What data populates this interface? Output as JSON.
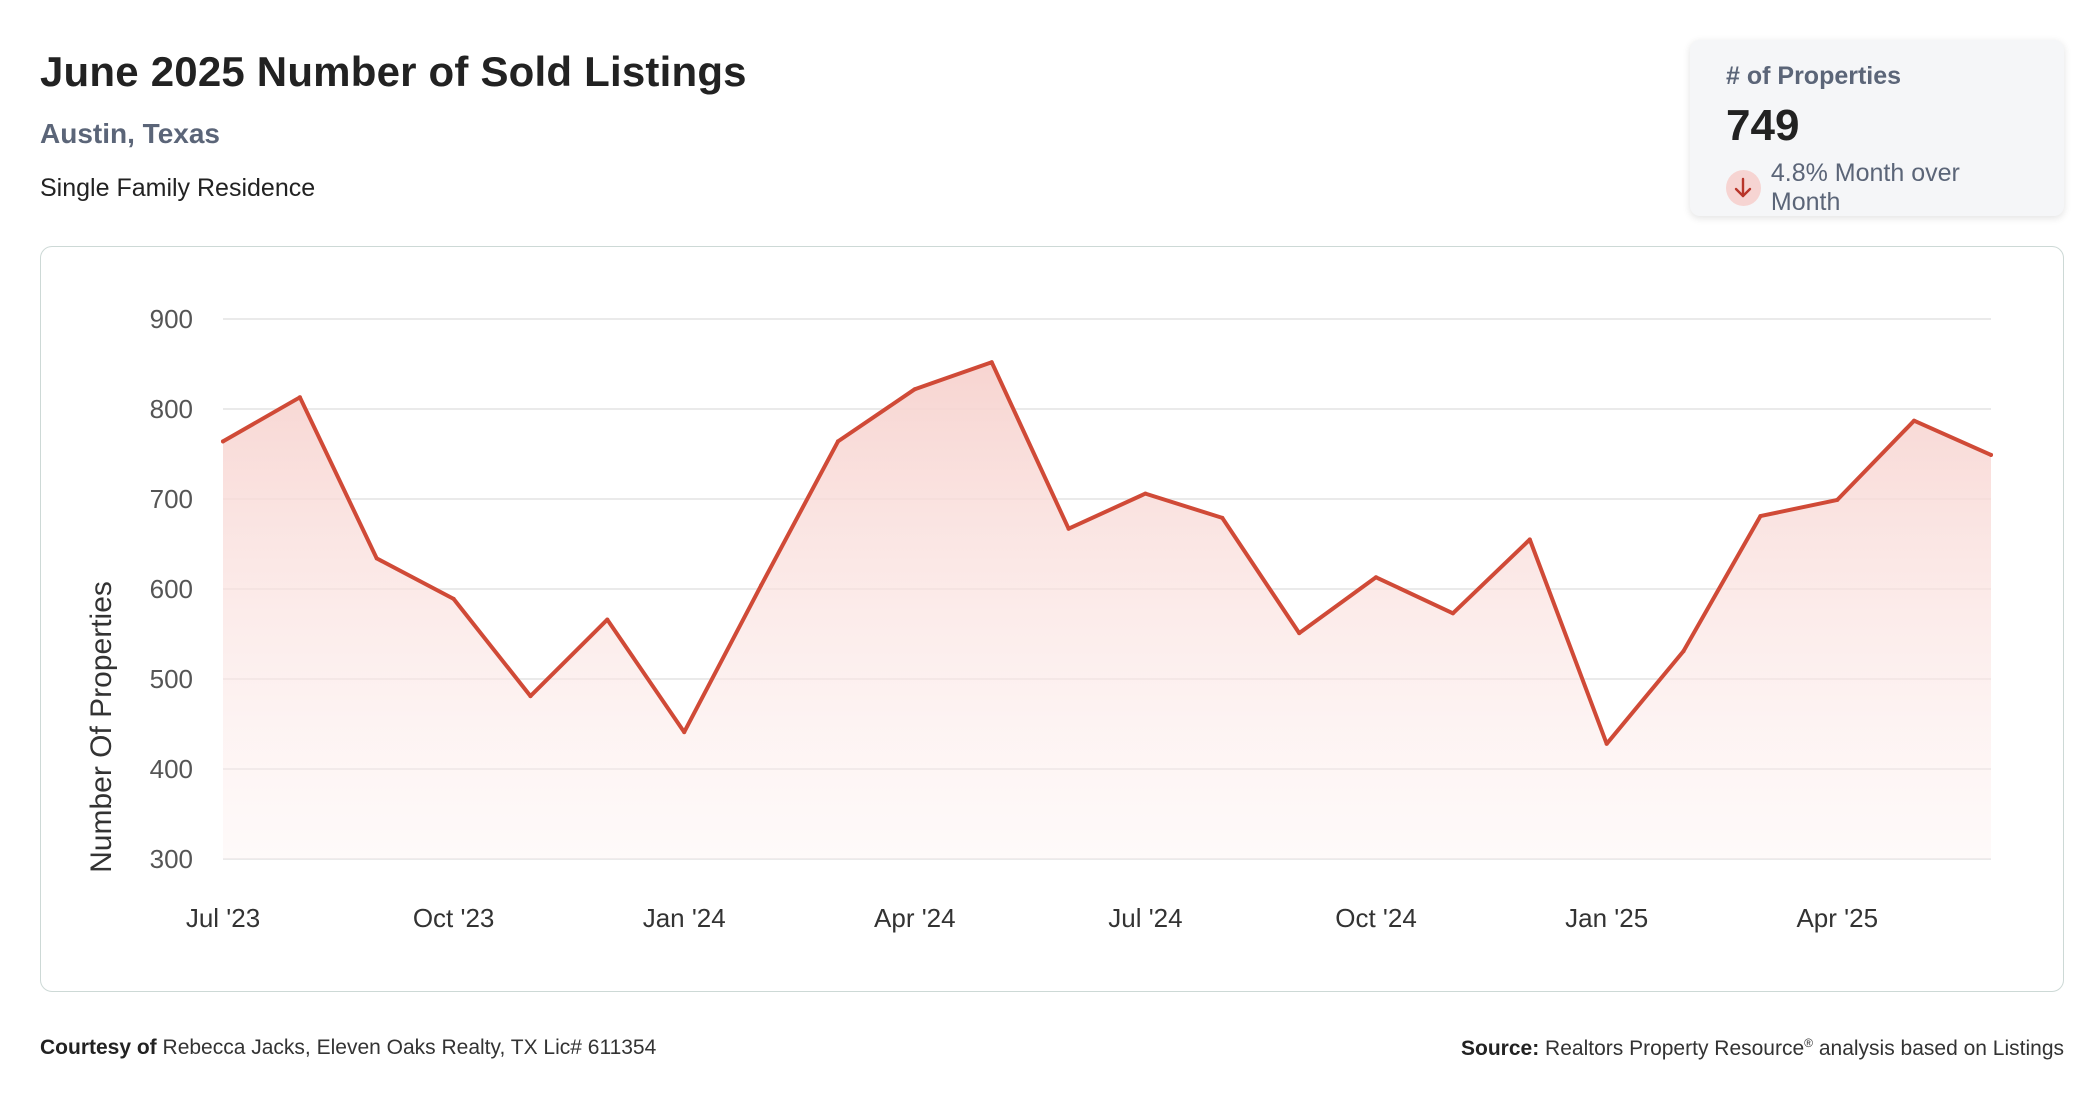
{
  "header": {
    "title": "June 2025 Number of Sold Listings",
    "location": "Austin, Texas",
    "subtitle": "Single Family Residence"
  },
  "kpi": {
    "label": "# of Properties",
    "value": "749",
    "change": "4.8% Month over Month",
    "direction": "down",
    "arrow_icon": "arrow-down-icon"
  },
  "footer": {
    "courtesy_label": "Courtesy of",
    "courtesy_text": "Rebecca Jacks, Eleven Oaks Realty, TX Lic# 611354",
    "source_label": "Source:",
    "source_name": "Realtors Property Resource",
    "source_mark": "®",
    "source_rest": "analysis based on Listings"
  },
  "colors": {
    "line": "#d04a37",
    "fill_top": "#f7d2ce",
    "gridline": "#e3e3e3",
    "accent_text": "#5b6578"
  },
  "chart_data": {
    "type": "area",
    "title": "June 2025 Number of Sold Listings",
    "xlabel": "",
    "ylabel": "Number Of Properties",
    "ylim": [
      300,
      900
    ],
    "yticks": [
      "900",
      "800",
      "700",
      "600",
      "500",
      "400",
      "300"
    ],
    "xtick_labels": [
      "Jul '23",
      "Oct '23",
      "Jan '24",
      "Apr '24",
      "Jul '24",
      "Oct '24",
      "Jan '25",
      "Apr '25"
    ],
    "grid": true,
    "x": [
      "2023-07",
      "2023-08",
      "2023-09",
      "2023-10",
      "2023-11",
      "2023-12",
      "2024-01",
      "2024-02",
      "2024-03",
      "2024-04",
      "2024-05",
      "2024-06",
      "2024-07",
      "2024-08",
      "2024-09",
      "2024-10",
      "2024-11",
      "2024-12",
      "2025-01",
      "2025-02",
      "2025-03",
      "2025-04",
      "2025-05",
      "2025-06"
    ],
    "values": [
      764,
      813,
      634,
      589,
      481,
      566,
      441,
      604,
      764,
      822,
      852,
      667,
      706,
      679,
      551,
      613,
      573,
      655,
      428,
      531,
      681,
      699,
      787,
      749
    ]
  }
}
